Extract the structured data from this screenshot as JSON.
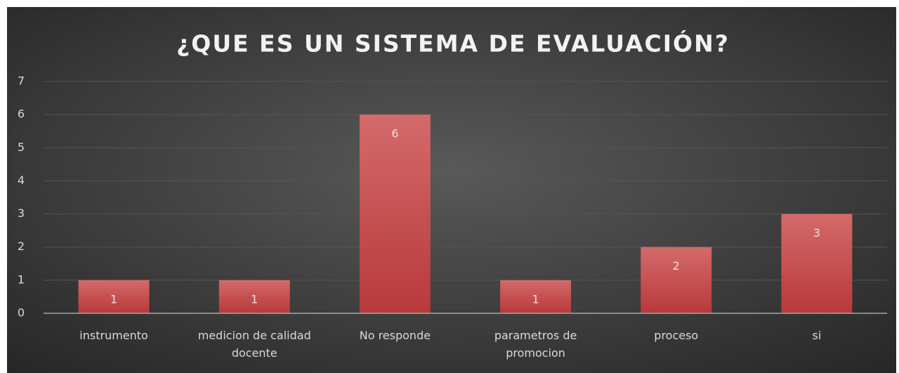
{
  "chart_data": {
    "type": "bar",
    "title": "¿QUE ES UN SISTEMA DE EVALUACIÓN?",
    "categories": [
      "instrumento",
      "medicion de calidad docente",
      "No responde",
      "parametros de promocion",
      "proceso",
      "si"
    ],
    "values": [
      1,
      1,
      6,
      1,
      2,
      3
    ],
    "color": "#c0474a",
    "ylim": [
      0,
      7
    ],
    "yticks": [
      0,
      1,
      2,
      3,
      4,
      5,
      6,
      7
    ],
    "grid": true
  }
}
